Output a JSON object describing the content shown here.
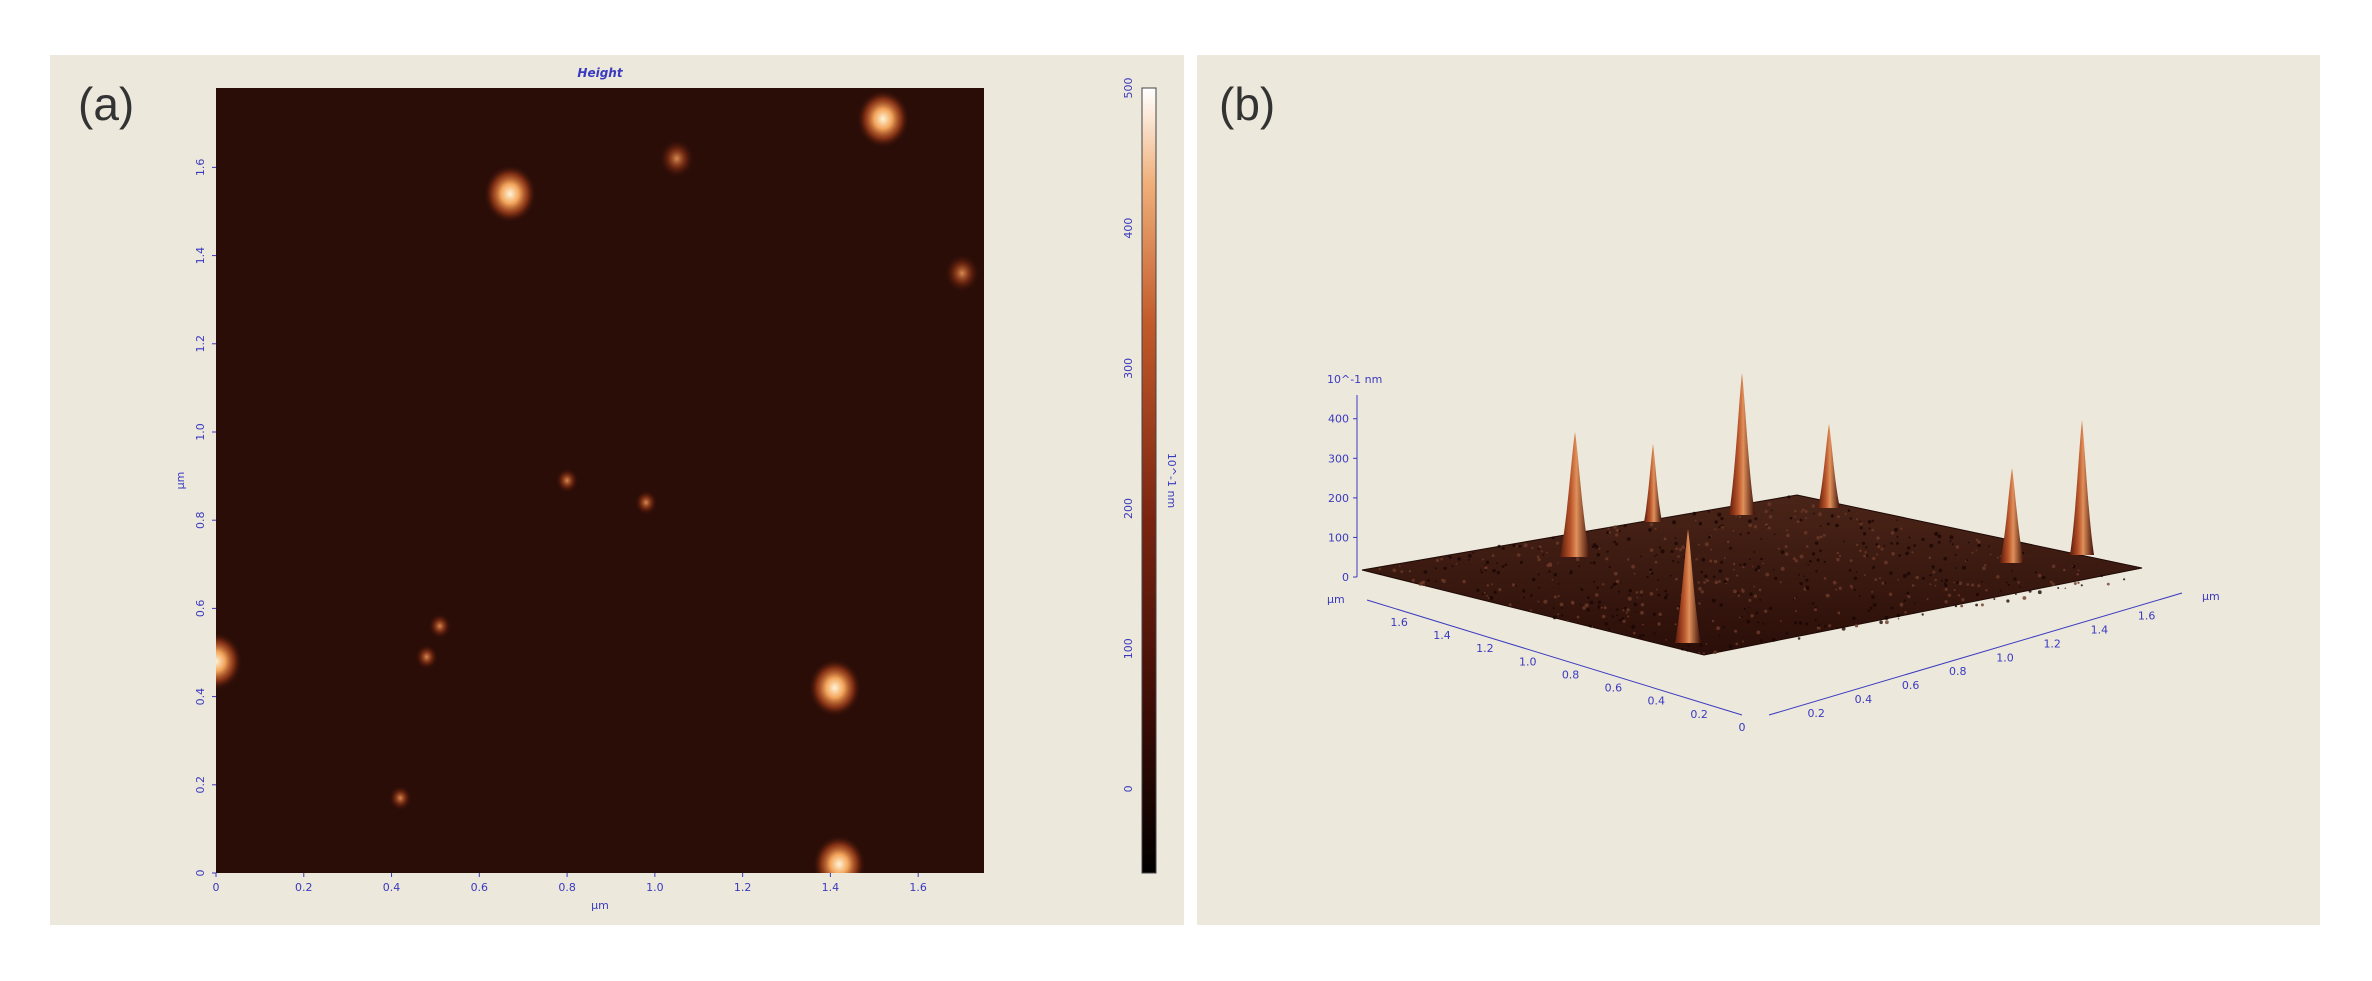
{
  "panels": {
    "a": {
      "label": "(a)"
    },
    "b": {
      "label": "(b)"
    }
  },
  "chart_data": [
    {
      "type": "heatmap",
      "title": "Height",
      "xlabel": "µm",
      "ylabel": "µm",
      "x_ticks": [
        "0",
        "0.2",
        "0.4",
        "0.6",
        "0.8",
        "1.0",
        "1.2",
        "1.4",
        "1.6"
      ],
      "y_ticks": [
        "0",
        "0.2",
        "0.4",
        "0.6",
        "0.8",
        "1.0",
        "1.2",
        "1.4",
        "1.6"
      ],
      "xlim": [
        0,
        1.75
      ],
      "ylim": [
        0,
        1.78
      ],
      "colorbar": {
        "label": "10^-1 nm",
        "ticks": [
          "0",
          "100",
          "200",
          "300",
          "400",
          "500"
        ],
        "range": [
          -60,
          500
        ]
      },
      "features": [
        {
          "x": 0.67,
          "y": 1.54,
          "height": 420
        },
        {
          "x": 1.52,
          "y": 1.71,
          "height": 460
        },
        {
          "x": 1.05,
          "y": 1.62,
          "height": 250
        },
        {
          "x": 1.7,
          "y": 1.36,
          "height": 280
        },
        {
          "x": 0.8,
          "y": 0.89,
          "height": 140
        },
        {
          "x": 0.98,
          "y": 0.84,
          "height": 100
        },
        {
          "x": 0.0,
          "y": 0.48,
          "height": 400
        },
        {
          "x": 0.48,
          "y": 0.49,
          "height": 190
        },
        {
          "x": 0.51,
          "y": 0.56,
          "height": 130
        },
        {
          "x": 1.41,
          "y": 0.42,
          "height": 440
        },
        {
          "x": 0.42,
          "y": 0.17,
          "height": 90
        },
        {
          "x": 1.42,
          "y": 0.02,
          "height": 440
        }
      ]
    },
    {
      "type": "surface",
      "z_label": "10^-1 nm",
      "z_ticks": [
        "0",
        "100",
        "200",
        "300",
        "400"
      ],
      "zlim": [
        0,
        460
      ],
      "xlabel": "µm",
      "ylabel": "µm",
      "x_ticks": [
        "0",
        "0.2",
        "0.4",
        "0.6",
        "0.8",
        "1.0",
        "1.2",
        "1.4",
        "1.6"
      ],
      "y_ticks": [
        "0.2",
        "0.4",
        "0.6",
        "0.8",
        "1.0",
        "1.2",
        "1.4",
        "1.6"
      ]
    }
  ]
}
